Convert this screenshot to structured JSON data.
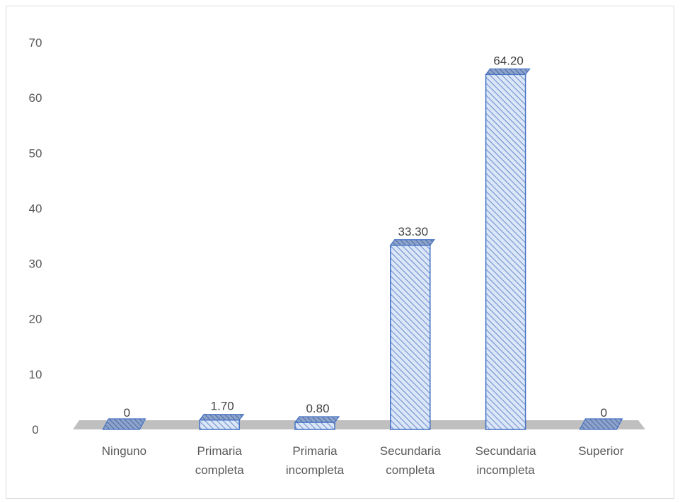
{
  "chart_data": {
    "type": "bar",
    "style": "3d-column",
    "categories": [
      [
        "Ninguno"
      ],
      [
        "Primaria",
        "completa"
      ],
      [
        "Primaria",
        "incompleta"
      ],
      [
        "Secundaria",
        "completa"
      ],
      [
        "Secundaria",
        "incompleta"
      ],
      [
        "Superior"
      ]
    ],
    "values": [
      0,
      1.7,
      0.8,
      33.3,
      64.2,
      0
    ],
    "data_labels": [
      "0",
      "1.70",
      "0.80",
      "33.30",
      "64.20",
      "0"
    ],
    "ylim": [
      0,
      70
    ],
    "yticks": [
      0,
      10,
      20,
      30,
      40,
      50,
      60,
      70
    ],
    "grid": false,
    "legend": "none",
    "colors": {
      "bar_fill": "#dbe6f7",
      "bar_hatch": "#4a72c2",
      "bar_edge": "#4472c4",
      "bar_top": "#8da3cc",
      "bar_side": "#2f528f",
      "floor": "#bfbfbf"
    }
  }
}
